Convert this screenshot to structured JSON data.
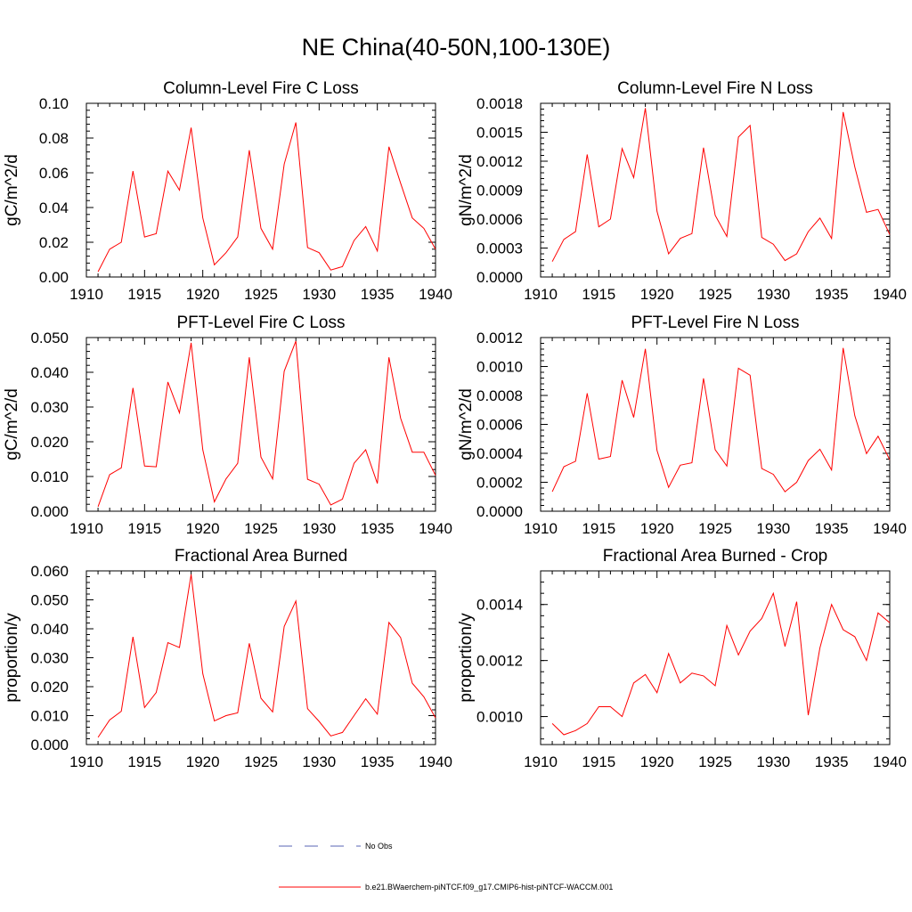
{
  "title": "NE China(40-50N,100-130E)",
  "colors": {
    "model_line": "#ff0000",
    "obs_line": "#5a64b4",
    "axis": "#000000"
  },
  "legend": [
    {
      "label": "No Obs",
      "style": "dashed",
      "color": "#5a64b4"
    },
    {
      "label": "b.e21.BWaerchem-piNTCF.f09_g17.CMIP6-hist-piNTCF-WACCM.001",
      "style": "solid",
      "color": "#ff0000"
    }
  ],
  "chart_data": [
    {
      "type": "line",
      "title": "Column-Level Fire C Loss",
      "ylabel": "gC/m^2/d",
      "xlim": [
        1910,
        1940
      ],
      "ylim": [
        0,
        0.1
      ],
      "xticks": [
        1910,
        1915,
        1920,
        1925,
        1930,
        1935,
        1940
      ],
      "yticks": [
        "0.00",
        "0.02",
        "0.04",
        "0.06",
        "0.08",
        "0.10"
      ],
      "ytick_values": [
        0,
        0.02,
        0.04,
        0.06,
        0.08,
        0.1
      ],
      "x": [
        1911,
        1912,
        1913,
        1914,
        1915,
        1916,
        1917,
        1918,
        1919,
        1920,
        1921,
        1922,
        1923,
        1924,
        1925,
        1926,
        1927,
        1928,
        1929,
        1930,
        1931,
        1932,
        1933,
        1934,
        1935,
        1936,
        1937,
        1938,
        1939,
        1940
      ],
      "series": [
        {
          "values": [
            0.003,
            0.016,
            0.02,
            0.061,
            0.023,
            0.025,
            0.061,
            0.05,
            0.086,
            0.034,
            0.007,
            0.014,
            0.023,
            0.073,
            0.028,
            0.016,
            0.065,
            0.089,
            0.017,
            0.014,
            0.004,
            0.006,
            0.021,
            0.029,
            0.015,
            0.075,
            0.054,
            0.034,
            0.028,
            0.016
          ]
        }
      ]
    },
    {
      "type": "line",
      "title": "Column-Level Fire N Loss",
      "ylabel": "gN/m^2/d",
      "xlim": [
        1910,
        1940
      ],
      "ylim": [
        0,
        0.0018
      ],
      "xticks": [
        1910,
        1915,
        1920,
        1925,
        1930,
        1935,
        1940
      ],
      "yticks": [
        "0.0000",
        "0.0003",
        "0.0006",
        "0.0009",
        "0.0012",
        "0.0015",
        "0.0018"
      ],
      "ytick_values": [
        0,
        0.0003,
        0.0006,
        0.0009,
        0.0012,
        0.0015,
        0.0018
      ],
      "x": [
        1911,
        1912,
        1913,
        1914,
        1915,
        1916,
        1917,
        1918,
        1919,
        1920,
        1921,
        1922,
        1923,
        1924,
        1925,
        1926,
        1927,
        1928,
        1929,
        1930,
        1931,
        1932,
        1933,
        1934,
        1935,
        1936,
        1937,
        1938,
        1939,
        1940
      ],
      "series": [
        {
          "values": [
            0.00016,
            0.00039,
            0.00047,
            0.00127,
            0.00052,
            0.0006,
            0.00133,
            0.00103,
            0.00175,
            0.00068,
            0.00024,
            0.0004,
            0.00045,
            0.00134,
            0.00064,
            0.00042,
            0.00145,
            0.00157,
            0.00041,
            0.00034,
            0.00017,
            0.00024,
            0.00047,
            0.00061,
            0.0004,
            0.00171,
            0.00114,
            0.00067,
            0.0007,
            0.00044
          ]
        }
      ]
    },
    {
      "type": "line",
      "title": "PFT-Level Fire C Loss",
      "ylabel": "gC/m^2/d",
      "xlim": [
        1910,
        1940
      ],
      "ylim": [
        0,
        0.05
      ],
      "xticks": [
        1910,
        1915,
        1920,
        1925,
        1930,
        1935,
        1940
      ],
      "yticks": [
        "0.000",
        "0.010",
        "0.020",
        "0.030",
        "0.040",
        "0.050"
      ],
      "ytick_values": [
        0,
        0.01,
        0.02,
        0.03,
        0.04,
        0.05
      ],
      "x": [
        1911,
        1912,
        1913,
        1914,
        1915,
        1916,
        1917,
        1918,
        1919,
        1920,
        1921,
        1922,
        1923,
        1924,
        1925,
        1926,
        1927,
        1928,
        1929,
        1930,
        1931,
        1932,
        1933,
        1934,
        1935,
        1936,
        1937,
        1938,
        1939,
        1940
      ],
      "series": [
        {
          "values": [
            0.0013,
            0.0105,
            0.0125,
            0.0355,
            0.013,
            0.0128,
            0.0372,
            0.0283,
            0.0485,
            0.0177,
            0.0027,
            0.0093,
            0.0138,
            0.0443,
            0.0156,
            0.0093,
            0.0403,
            0.049,
            0.0092,
            0.0078,
            0.0018,
            0.0035,
            0.0138,
            0.0177,
            0.008,
            0.0443,
            0.0268,
            0.017,
            0.017,
            0.0103
          ]
        }
      ]
    },
    {
      "type": "line",
      "title": "PFT-Level Fire N Loss",
      "ylabel": "gN/m^2/d",
      "xlim": [
        1910,
        1940
      ],
      "ylim": [
        0,
        0.0012
      ],
      "xticks": [
        1910,
        1915,
        1920,
        1925,
        1930,
        1935,
        1940
      ],
      "yticks": [
        "0.0000",
        "0.0002",
        "0.0004",
        "0.0006",
        "0.0008",
        "0.0010",
        "0.0012"
      ],
      "ytick_values": [
        0,
        0.0002,
        0.0004,
        0.0006,
        0.0008,
        0.001,
        0.0012
      ],
      "x": [
        1911,
        1912,
        1913,
        1914,
        1915,
        1916,
        1917,
        1918,
        1919,
        1920,
        1921,
        1922,
        1923,
        1924,
        1925,
        1926,
        1927,
        1928,
        1929,
        1930,
        1931,
        1932,
        1933,
        1934,
        1935,
        1936,
        1937,
        1938,
        1939,
        1940
      ],
      "series": [
        {
          "values": [
            0.000135,
            0.000308,
            0.000345,
            0.000815,
            0.00036,
            0.000378,
            0.000905,
            0.000648,
            0.001122,
            0.00042,
            0.000165,
            0.000318,
            0.000335,
            0.000918,
            0.000425,
            0.000312,
            0.000988,
            0.00094,
            0.000295,
            0.000255,
            0.000135,
            0.0002,
            0.00035,
            0.000428,
            0.000285,
            0.001128,
            0.00066,
            0.000398,
            0.000518,
            0.000355
          ]
        }
      ]
    },
    {
      "type": "line",
      "title": "Fractional Area Burned",
      "ylabel": "proportion/y",
      "xlim": [
        1910,
        1940
      ],
      "ylim": [
        0,
        0.06
      ],
      "xticks": [
        1910,
        1915,
        1920,
        1925,
        1930,
        1935,
        1940
      ],
      "yticks": [
        "0.000",
        "0.010",
        "0.020",
        "0.030",
        "0.040",
        "0.050",
        "0.060"
      ],
      "ytick_values": [
        0,
        0.01,
        0.02,
        0.03,
        0.04,
        0.05,
        0.06
      ],
      "x": [
        1911,
        1912,
        1913,
        1914,
        1915,
        1916,
        1917,
        1918,
        1919,
        1920,
        1921,
        1922,
        1923,
        1924,
        1925,
        1926,
        1927,
        1928,
        1929,
        1930,
        1931,
        1932,
        1933,
        1934,
        1935,
        1936,
        1937,
        1938,
        1939,
        1940
      ],
      "series": [
        {
          "values": [
            0.0025,
            0.0085,
            0.0115,
            0.0372,
            0.0128,
            0.018,
            0.0352,
            0.0335,
            0.0588,
            0.0245,
            0.0082,
            0.01,
            0.011,
            0.035,
            0.016,
            0.0113,
            0.0408,
            0.0496,
            0.0124,
            0.008,
            0.003,
            0.0042,
            0.01,
            0.0158,
            0.0105,
            0.0422,
            0.037,
            0.0212,
            0.0165,
            0.0092
          ]
        }
      ]
    },
    {
      "type": "line",
      "title": "Fractional Area Burned - Crop",
      "ylabel": "proportion/y",
      "xlim": [
        1910,
        1940
      ],
      "ylim": [
        0.0009,
        0.00152
      ],
      "xticks": [
        1910,
        1915,
        1920,
        1925,
        1930,
        1935,
        1940
      ],
      "yticks": [
        "0.0010",
        "0.0012",
        "0.0014"
      ],
      "ytick_values": [
        0.001,
        0.0012,
        0.0014
      ],
      "x": [
        1911,
        1912,
        1913,
        1914,
        1915,
        1916,
        1917,
        1918,
        1919,
        1920,
        1921,
        1922,
        1923,
        1924,
        1925,
        1926,
        1927,
        1928,
        1929,
        1930,
        1931,
        1932,
        1933,
        1934,
        1935,
        1936,
        1937,
        1938,
        1939,
        1940
      ],
      "series": [
        {
          "values": [
            0.000975,
            0.000935,
            0.00095,
            0.000975,
            0.001035,
            0.001035,
            0.001,
            0.00112,
            0.00115,
            0.001085,
            0.001225,
            0.00112,
            0.001155,
            0.001145,
            0.00111,
            0.001325,
            0.00122,
            0.001305,
            0.00135,
            0.00144,
            0.00125,
            0.00141,
            0.001005,
            0.001245,
            0.0014,
            0.00131,
            0.001285,
            0.0012,
            0.00137,
            0.001335
          ]
        }
      ]
    }
  ]
}
